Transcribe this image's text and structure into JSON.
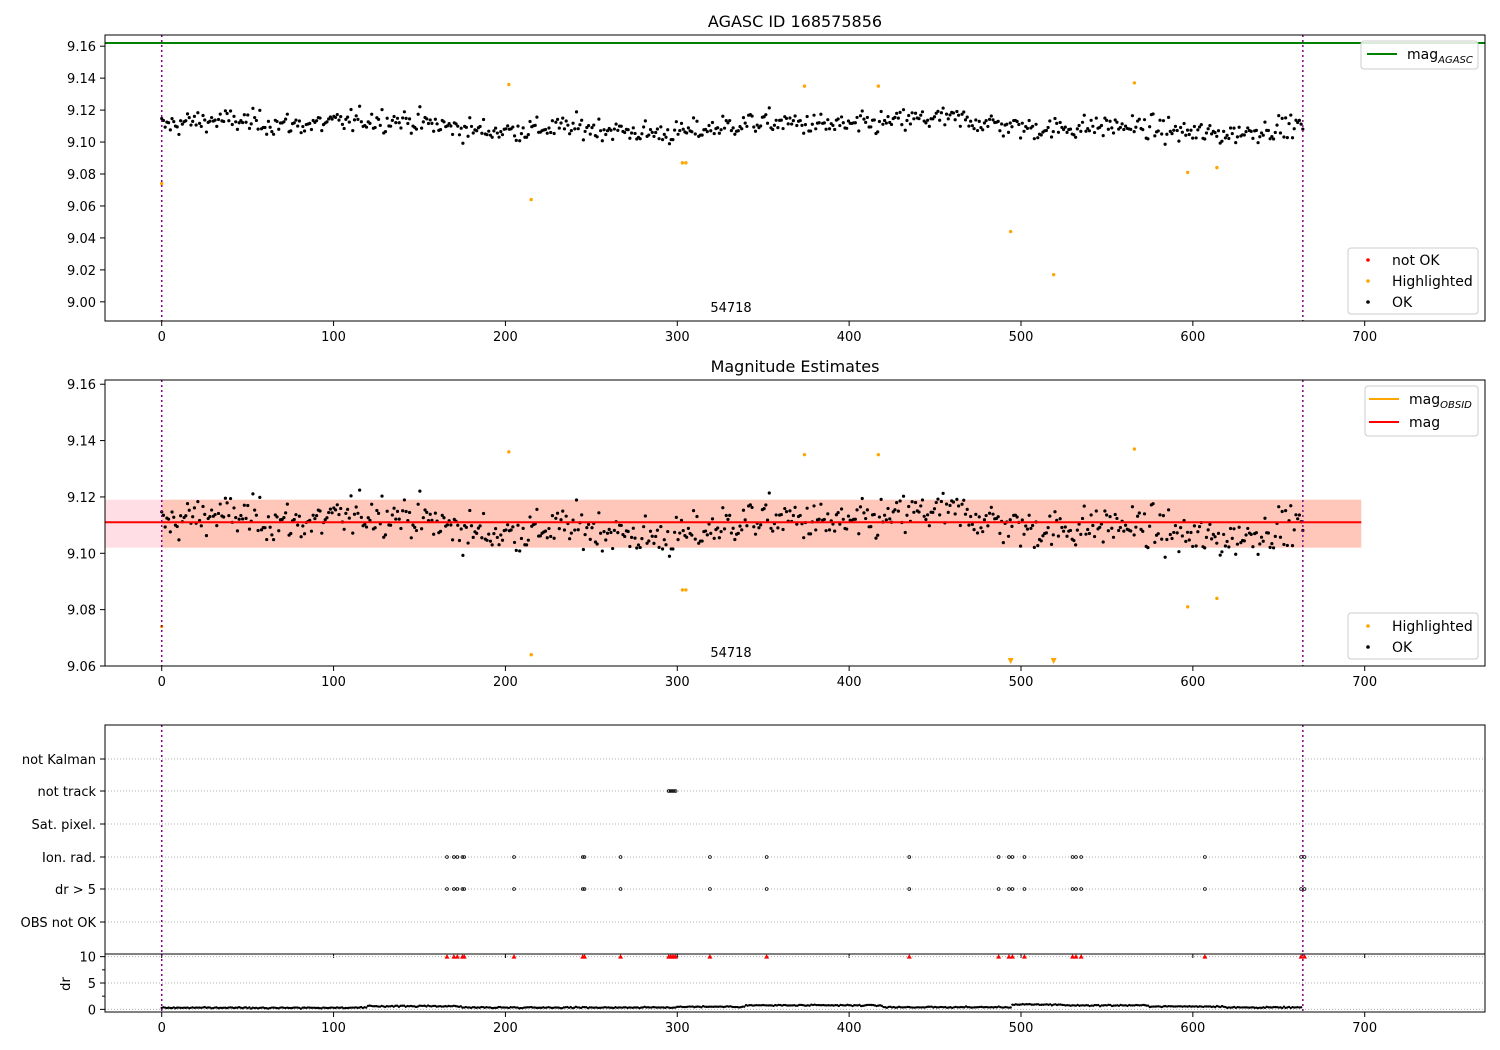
{
  "figure": {
    "title": "AGASC ID 168575856",
    "obsid_label": "54718"
  },
  "colors": {
    "ok": "#000000",
    "highlighted": "#ffa500",
    "not_ok": "#ff0000",
    "agasc_line": "#008000",
    "mag_line": "#ff0000",
    "obsid_line": "#ffa500",
    "band_outer": "#ffc0cb",
    "band_inner": "#ffa07a",
    "boundary": "#800080",
    "grid": "#b0b0b0"
  },
  "chart_data": [
    {
      "type": "scatter",
      "title": "",
      "xlim": [
        -33,
        770
      ],
      "ylim": [
        8.988,
        9.167
      ],
      "x_ticks": [
        0,
        100,
        200,
        300,
        400,
        500,
        600,
        700
      ],
      "y_ticks": [
        9.0,
        9.02,
        9.04,
        9.06,
        9.08,
        9.1,
        9.12,
        9.14,
        9.16
      ],
      "y_tick_labels": [
        "9.00",
        "9.02",
        "9.04",
        "9.06",
        "9.08",
        "9.10",
        "9.12",
        "9.14",
        "9.16"
      ],
      "obsid_boundaries": [
        0,
        664
      ],
      "mag_agasc": 9.162,
      "legend_upper": [
        {
          "label": "mag",
          "sub": "AGASC"
        }
      ],
      "legend_lower": [
        {
          "label": "not OK"
        },
        {
          "label": "Highlighted"
        },
        {
          "label": "OK"
        }
      ],
      "ok_series": {
        "n": 664,
        "x_start": 0,
        "x_end": 664,
        "center": 9.11,
        "spread": 0.006
      },
      "highlighted_points": [
        [
          0,
          9.074
        ],
        [
          202,
          9.136
        ],
        [
          215,
          9.064
        ],
        [
          303,
          9.087
        ],
        [
          305,
          9.087
        ],
        [
          374,
          9.135
        ],
        [
          417,
          9.135
        ],
        [
          494,
          9.044
        ],
        [
          519,
          9.017
        ],
        [
          566,
          9.137
        ],
        [
          597,
          9.081
        ],
        [
          614,
          9.084
        ]
      ]
    },
    {
      "type": "scatter",
      "title": "Magnitude Estimates",
      "xlim": [
        -33,
        770
      ],
      "ylim": [
        9.06,
        9.1615
      ],
      "x_ticks": [
        0,
        100,
        200,
        300,
        400,
        500,
        600,
        700
      ],
      "y_ticks": [
        9.06,
        9.08,
        9.1,
        9.12,
        9.14,
        9.16
      ],
      "y_tick_labels": [
        "9.06",
        "9.08",
        "9.10",
        "9.12",
        "9.14",
        "9.16"
      ],
      "obsid_boundaries": [
        0,
        664
      ],
      "mag": 9.111,
      "band_outer": [
        9.102,
        9.119
      ],
      "band_inner": [
        9.102,
        9.119
      ],
      "band_inner_x": [
        0,
        698
      ],
      "band_outer_x": [
        -33,
        698
      ],
      "mag_line_x": [
        -33,
        698
      ],
      "legend_upper": [
        {
          "label": "mag",
          "sub": "OBSID"
        },
        {
          "label": "mag"
        }
      ],
      "legend_lower": [
        {
          "label": "Highlighted"
        },
        {
          "label": "OK"
        }
      ],
      "ok_series": {
        "n": 664,
        "x_start": 0,
        "x_end": 664,
        "center": 9.11,
        "spread": 0.006
      },
      "highlighted_points": [
        [
          0,
          9.074
        ],
        [
          202,
          9.136
        ],
        [
          215,
          9.064
        ],
        [
          303,
          9.087
        ],
        [
          305,
          9.087
        ],
        [
          374,
          9.135
        ],
        [
          417,
          9.135
        ],
        [
          566,
          9.137
        ],
        [
          597,
          9.081
        ],
        [
          614,
          9.084
        ]
      ],
      "out_of_range_markers": [
        494,
        519
      ]
    },
    {
      "type": "scatter",
      "title": "",
      "xlim": [
        -33,
        770
      ],
      "x_ticks": [
        0,
        100,
        200,
        300,
        400,
        500,
        600,
        700
      ],
      "flag_rows": [
        "not Kalman",
        "not track",
        "Sat. pixel.",
        "Ion. rad.",
        "dr > 5",
        "OBS not OK"
      ],
      "flags": {
        "not Kalman": [],
        "not track": [
          295,
          296,
          297,
          298,
          299
        ],
        "Sat. pixel.": [],
        "Ion. rad.": [
          166,
          170,
          172,
          175,
          176,
          205,
          245,
          246,
          267,
          319,
          352,
          435,
          487,
          493,
          495,
          502,
          530,
          532,
          535,
          607,
          663,
          665
        ],
        "dr > 5": [
          166,
          170,
          172,
          175,
          176,
          205,
          245,
          246,
          267,
          319,
          352,
          435,
          487,
          493,
          495,
          502,
          530,
          532,
          535,
          607,
          663,
          665
        ],
        "OBS not OK": []
      },
      "obsid_boundaries": [
        0,
        664
      ]
    },
    {
      "type": "scatter",
      "title": "",
      "ylabel": "dr",
      "xlim": [
        -33,
        770
      ],
      "ylim": [
        -0.5,
        10.5
      ],
      "x_ticks": [
        0,
        100,
        200,
        300,
        400,
        500,
        600,
        700
      ],
      "x_tick_labels": [
        "0",
        "100",
        "200",
        "300",
        "400",
        "500",
        "600",
        "700"
      ],
      "y_ticks": [
        0,
        5,
        10
      ],
      "y_tick_labels": [
        "0",
        "5",
        "10"
      ],
      "dr_clipped": [
        166,
        170,
        172,
        175,
        176,
        205,
        245,
        246,
        267,
        295,
        296,
        297,
        298,
        299,
        319,
        352,
        435,
        487,
        493,
        495,
        502,
        530,
        532,
        535,
        607,
        663,
        665
      ],
      "dr_segments": [
        {
          "x_start": 0,
          "x_end": 120,
          "value": 0.3
        },
        {
          "x_start": 120,
          "x_end": 175,
          "value": 0.6
        },
        {
          "x_start": 175,
          "x_end": 300,
          "value": 0.35
        },
        {
          "x_start": 300,
          "x_end": 340,
          "value": 0.5
        },
        {
          "x_start": 340,
          "x_end": 420,
          "value": 0.75
        },
        {
          "x_start": 420,
          "x_end": 495,
          "value": 0.4
        },
        {
          "x_start": 495,
          "x_end": 525,
          "value": 0.9
        },
        {
          "x_start": 525,
          "x_end": 575,
          "value": 0.75
        },
        {
          "x_start": 575,
          "x_end": 620,
          "value": 0.55
        },
        {
          "x_start": 620,
          "x_end": 664,
          "value": 0.35
        }
      ],
      "obsid_boundaries": [
        0,
        664
      ]
    }
  ]
}
